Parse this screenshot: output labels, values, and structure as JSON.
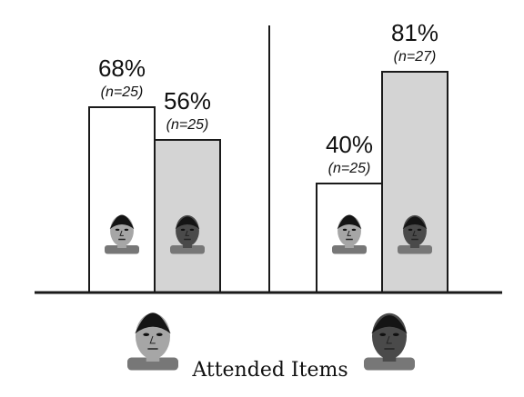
{
  "chart_data": {
    "type": "bar",
    "xlabel": "Attended Items",
    "groups": [
      {
        "attended_face": "white-male-face",
        "bars": [
          {
            "value": 68,
            "value_label": "68%",
            "n_label": "(n=25)",
            "face": "white-male-face",
            "fill": "white"
          },
          {
            "value": 56,
            "value_label": "56%",
            "n_label": "(n=25)",
            "face": "black-male-face",
            "fill": "gray"
          }
        ]
      },
      {
        "attended_face": "black-male-face",
        "bars": [
          {
            "value": 40,
            "value_label": "40%",
            "n_label": "(n=25)",
            "face": "white-male-face",
            "fill": "white"
          },
          {
            "value": 81,
            "value_label": "81%",
            "n_label": "(n=27)",
            "face": "black-male-face",
            "fill": "gray"
          }
        ]
      }
    ],
    "ylim": [
      0,
      100
    ],
    "grid": false,
    "legend": "none"
  },
  "colors": {
    "bar_white": "#ffffff",
    "bar_gray": "#d4d4d4",
    "axis": "#1a1a1a",
    "skin_white": "#a6a6a6",
    "skin_black": "#4a4a4a",
    "hair": "#141414"
  }
}
